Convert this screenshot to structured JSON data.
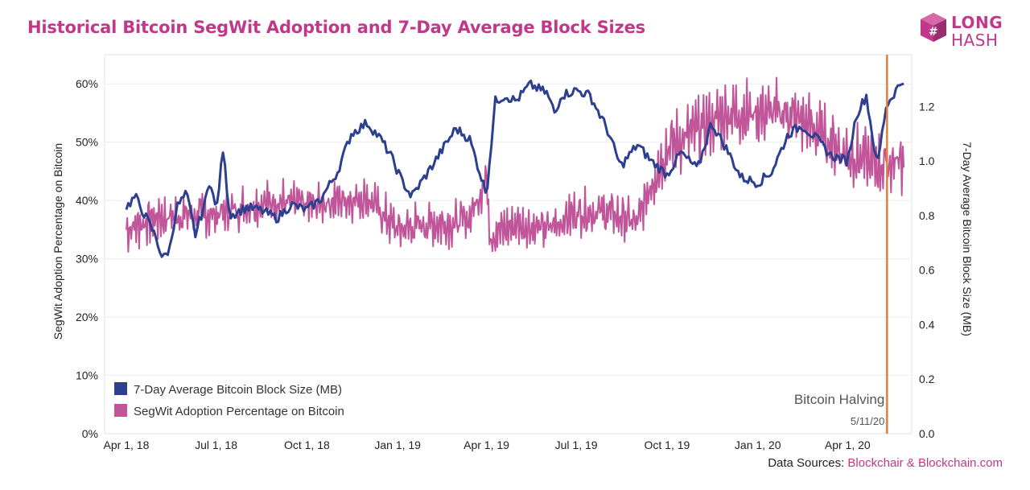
{
  "header": {
    "title": "Historical Bitcoin SegWit Adoption and 7-Day Average Block Sizes"
  },
  "logo": {
    "line1": "LONG",
    "line2": "HASH",
    "icon": "longhash-cube-icon",
    "color": "#c0388a"
  },
  "footer": {
    "prefix": "Data Sources:",
    "sources": "Blockchair & Blockchain.com"
  },
  "chart_data": {
    "type": "line",
    "title": "Historical Bitcoin SegWit Adoption and 7-Day Average Block Sizes",
    "x_tick_labels": [
      "Apr 1, 18",
      "Jul 1, 18",
      "Oct 1, 18",
      "Jan 1, 19",
      "Apr 1, 19",
      "Jul 1, 19",
      "Oct 1, 19",
      "Jan 1, 20",
      "Apr 1, 20"
    ],
    "x_range": [
      "2018-03-10",
      "2020-06-05"
    ],
    "y_left": {
      "label": "SegWit Adoption Percentage on Bitcoin",
      "ticks": [
        "0%",
        "10%",
        "20%",
        "30%",
        "40%",
        "50%",
        "60%"
      ],
      "range": [
        0,
        65
      ]
    },
    "y_right": {
      "label": "7-Day Average Bitcoin Block Size (MB)",
      "ticks": [
        "0.0",
        "0.2",
        "0.4",
        "0.6",
        "0.8",
        "1.0",
        "1.2"
      ],
      "range": [
        0,
        1.39
      ]
    },
    "grid": "horizontal",
    "legend_position": "bottom-left",
    "series": [
      {
        "name": "7-Day Average Bitcoin Block Size (MB)",
        "axis": "right",
        "color": "#2d3f8f",
        "points": [
          [
            "2018-04-01",
            0.83
          ],
          [
            "2018-04-10",
            0.87
          ],
          [
            "2018-04-20",
            0.8
          ],
          [
            "2018-05-01",
            0.72
          ],
          [
            "2018-05-08",
            0.64
          ],
          [
            "2018-05-15",
            0.68
          ],
          [
            "2018-05-22",
            0.83
          ],
          [
            "2018-06-01",
            0.88
          ],
          [
            "2018-06-10",
            0.73
          ],
          [
            "2018-06-20",
            0.85
          ],
          [
            "2018-06-25",
            0.94
          ],
          [
            "2018-07-01",
            0.81
          ],
          [
            "2018-07-08",
            1.04
          ],
          [
            "2018-07-15",
            0.8
          ],
          [
            "2018-08-01",
            0.83
          ],
          [
            "2018-08-15",
            0.82
          ],
          [
            "2018-09-01",
            0.79
          ],
          [
            "2018-09-15",
            0.84
          ],
          [
            "2018-10-01",
            0.82
          ],
          [
            "2018-10-15",
            0.86
          ],
          [
            "2018-11-01",
            0.96
          ],
          [
            "2018-11-15",
            1.1
          ],
          [
            "2018-12-01",
            1.14
          ],
          [
            "2018-12-15",
            1.08
          ],
          [
            "2018-12-25",
            1.02
          ],
          [
            "2019-01-05",
            0.93
          ],
          [
            "2019-01-15",
            0.87
          ],
          [
            "2019-02-01",
            0.96
          ],
          [
            "2019-02-15",
            1.04
          ],
          [
            "2019-03-01",
            1.12
          ],
          [
            "2019-03-15",
            1.08
          ],
          [
            "2019-04-01",
            0.88
          ],
          [
            "2019-04-10",
            1.22
          ],
          [
            "2019-04-20",
            1.24
          ],
          [
            "2019-05-01",
            1.22
          ],
          [
            "2019-05-15",
            1.28
          ],
          [
            "2019-06-01",
            1.25
          ],
          [
            "2019-06-10",
            1.17
          ],
          [
            "2019-06-15",
            1.24
          ],
          [
            "2019-07-01",
            1.26
          ],
          [
            "2019-07-15",
            1.24
          ],
          [
            "2019-08-01",
            1.12
          ],
          [
            "2019-08-15",
            0.98
          ],
          [
            "2019-09-01",
            1.06
          ],
          [
            "2019-09-15",
            1.0
          ],
          [
            "2019-10-01",
            0.95
          ],
          [
            "2019-10-15",
            1.03
          ],
          [
            "2019-11-01",
            0.97
          ],
          [
            "2019-11-15",
            1.14
          ],
          [
            "2019-12-01",
            1.04
          ],
          [
            "2019-12-15",
            0.94
          ],
          [
            "2020-01-01",
            0.92
          ],
          [
            "2020-01-15",
            0.96
          ],
          [
            "2020-02-01",
            1.1
          ],
          [
            "2020-02-15",
            1.13
          ],
          [
            "2020-03-01",
            1.08
          ],
          [
            "2020-03-15",
            1.02
          ],
          [
            "2020-04-01",
            1.0
          ],
          [
            "2020-04-10",
            1.17
          ],
          [
            "2020-04-20",
            1.24
          ],
          [
            "2020-05-01",
            0.98
          ],
          [
            "2020-05-10",
            1.2
          ],
          [
            "2020-05-20",
            1.26
          ],
          [
            "2020-05-28",
            1.3
          ]
        ]
      },
      {
        "name": "SegWit Adoption Percentage on Bitcoin",
        "axis": "left",
        "color": "#c0559a",
        "points": [
          [
            "2018-04-01",
            35
          ],
          [
            "2018-05-01",
            37
          ],
          [
            "2018-06-01",
            37.5
          ],
          [
            "2018-07-01",
            37.5
          ],
          [
            "2018-08-01",
            39
          ],
          [
            "2018-09-01",
            40
          ],
          [
            "2018-09-15",
            39.5
          ],
          [
            "2018-10-01",
            39
          ],
          [
            "2018-11-01",
            40
          ],
          [
            "2018-12-01",
            40.5
          ],
          [
            "2018-12-15",
            38
          ],
          [
            "2019-01-01",
            35
          ],
          [
            "2019-02-01",
            36
          ],
          [
            "2019-03-01",
            36
          ],
          [
            "2019-03-15",
            37
          ],
          [
            "2019-04-01",
            44
          ],
          [
            "2019-04-05",
            34
          ],
          [
            "2019-05-01",
            36
          ],
          [
            "2019-06-01",
            35
          ],
          [
            "2019-07-01",
            38
          ],
          [
            "2019-08-01",
            38
          ],
          [
            "2019-09-01",
            36
          ],
          [
            "2019-09-15",
            43
          ],
          [
            "2019-10-01",
            49
          ],
          [
            "2019-11-01",
            52
          ],
          [
            "2019-12-01",
            55
          ],
          [
            "2020-01-01",
            55
          ],
          [
            "2020-02-01",
            55
          ],
          [
            "2020-03-01",
            52
          ],
          [
            "2020-04-01",
            48
          ],
          [
            "2020-05-01",
            46
          ],
          [
            "2020-05-28",
            47
          ]
        ]
      }
    ],
    "annotation": {
      "label": "Bitcoin Halving",
      "date_label": "5/11/20",
      "x": "2020-05-11",
      "color": "#e87a3c"
    }
  }
}
